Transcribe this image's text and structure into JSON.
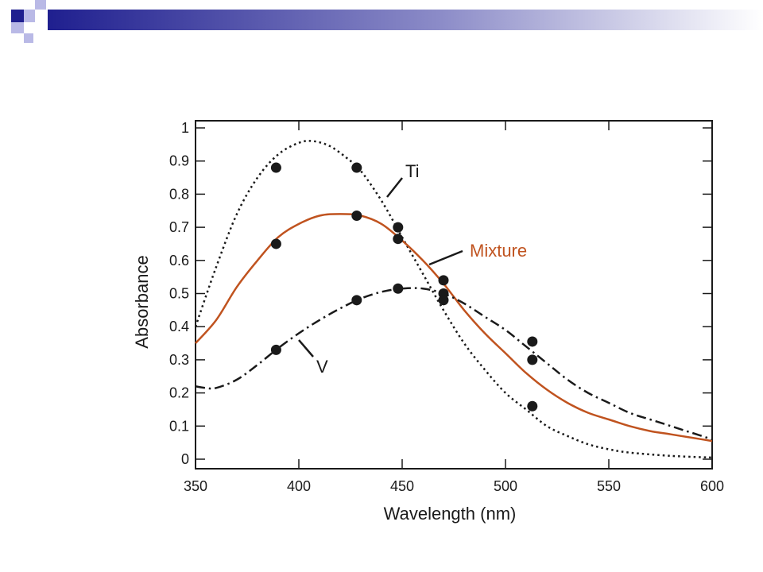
{
  "colors": {
    "banner_dark": "#1f1f8f",
    "banner_light": "#b9b9e6",
    "mixture": "#c0531f",
    "ink": "#1a1a1a"
  },
  "chart_data": {
    "type": "line",
    "title": "",
    "xlabel": "Wavelength (nm)",
    "ylabel": "Absorbance",
    "xlim": [
      350,
      600
    ],
    "ylim": [
      0,
      1
    ],
    "x_ticks": [
      350,
      400,
      450,
      500,
      550,
      600
    ],
    "y_ticks": [
      0,
      0.1,
      0.2,
      0.3,
      0.4,
      0.5,
      0.6,
      0.7,
      0.8,
      0.9,
      1
    ],
    "y_tick_labels": [
      "0",
      "0.1",
      "0.2",
      "0.3",
      "0.4",
      "0.5",
      "0.6",
      "0.7",
      "0.8",
      "0.9",
      "1"
    ],
    "grid": false,
    "series": [
      {
        "name": "Ti",
        "line_style": "dotted",
        "color": "#1a1a1a",
        "curve": [
          [
            350,
            0.4
          ],
          [
            360,
            0.58
          ],
          [
            370,
            0.74
          ],
          [
            380,
            0.85
          ],
          [
            390,
            0.92
          ],
          [
            400,
            0.955
          ],
          [
            407,
            0.96
          ],
          [
            415,
            0.945
          ],
          [
            423,
            0.91
          ],
          [
            430,
            0.87
          ],
          [
            440,
            0.78
          ],
          [
            450,
            0.67
          ],
          [
            460,
            0.56
          ],
          [
            470,
            0.45
          ],
          [
            480,
            0.35
          ],
          [
            490,
            0.27
          ],
          [
            500,
            0.2
          ],
          [
            510,
            0.15
          ],
          [
            520,
            0.1
          ],
          [
            530,
            0.07
          ],
          [
            540,
            0.045
          ],
          [
            550,
            0.03
          ],
          [
            560,
            0.02
          ],
          [
            580,
            0.01
          ],
          [
            600,
            0.005
          ]
        ],
        "points": [
          [
            389,
            0.88
          ],
          [
            428,
            0.88
          ],
          [
            448,
            0.7
          ],
          [
            470,
            0.5
          ],
          [
            513,
            0.16
          ]
        ]
      },
      {
        "name": "Mixture",
        "line_style": "solid",
        "color": "#c0531f",
        "curve": [
          [
            350,
            0.35
          ],
          [
            360,
            0.42
          ],
          [
            370,
            0.52
          ],
          [
            380,
            0.6
          ],
          [
            390,
            0.67
          ],
          [
            400,
            0.71
          ],
          [
            410,
            0.735
          ],
          [
            420,
            0.74
          ],
          [
            430,
            0.735
          ],
          [
            440,
            0.71
          ],
          [
            450,
            0.66
          ],
          [
            460,
            0.6
          ],
          [
            470,
            0.53
          ],
          [
            480,
            0.45
          ],
          [
            490,
            0.38
          ],
          [
            500,
            0.32
          ],
          [
            510,
            0.26
          ],
          [
            520,
            0.21
          ],
          [
            530,
            0.17
          ],
          [
            540,
            0.14
          ],
          [
            550,
            0.12
          ],
          [
            560,
            0.1
          ],
          [
            570,
            0.085
          ],
          [
            580,
            0.075
          ],
          [
            590,
            0.065
          ],
          [
            600,
            0.055
          ]
        ],
        "points": [
          [
            389,
            0.65
          ],
          [
            428,
            0.735
          ],
          [
            448,
            0.665
          ],
          [
            470,
            0.54
          ],
          [
            513,
            0.3
          ]
        ]
      },
      {
        "name": "V",
        "line_style": "dashdot",
        "color": "#1a1a1a",
        "curve": [
          [
            350,
            0.22
          ],
          [
            355,
            0.215
          ],
          [
            360,
            0.215
          ],
          [
            370,
            0.24
          ],
          [
            380,
            0.285
          ],
          [
            390,
            0.335
          ],
          [
            400,
            0.38
          ],
          [
            410,
            0.42
          ],
          [
            420,
            0.455
          ],
          [
            430,
            0.485
          ],
          [
            440,
            0.505
          ],
          [
            450,
            0.515
          ],
          [
            460,
            0.515
          ],
          [
            470,
            0.5
          ],
          [
            480,
            0.47
          ],
          [
            490,
            0.43
          ],
          [
            500,
            0.39
          ],
          [
            510,
            0.34
          ],
          [
            520,
            0.29
          ],
          [
            530,
            0.24
          ],
          [
            540,
            0.2
          ],
          [
            550,
            0.17
          ],
          [
            560,
            0.14
          ],
          [
            570,
            0.12
          ],
          [
            580,
            0.1
          ],
          [
            590,
            0.08
          ],
          [
            600,
            0.06
          ]
        ],
        "points": [
          [
            389,
            0.33
          ],
          [
            428,
            0.48
          ],
          [
            448,
            0.515
          ],
          [
            470,
            0.48
          ],
          [
            513,
            0.355
          ]
        ]
      }
    ]
  }
}
